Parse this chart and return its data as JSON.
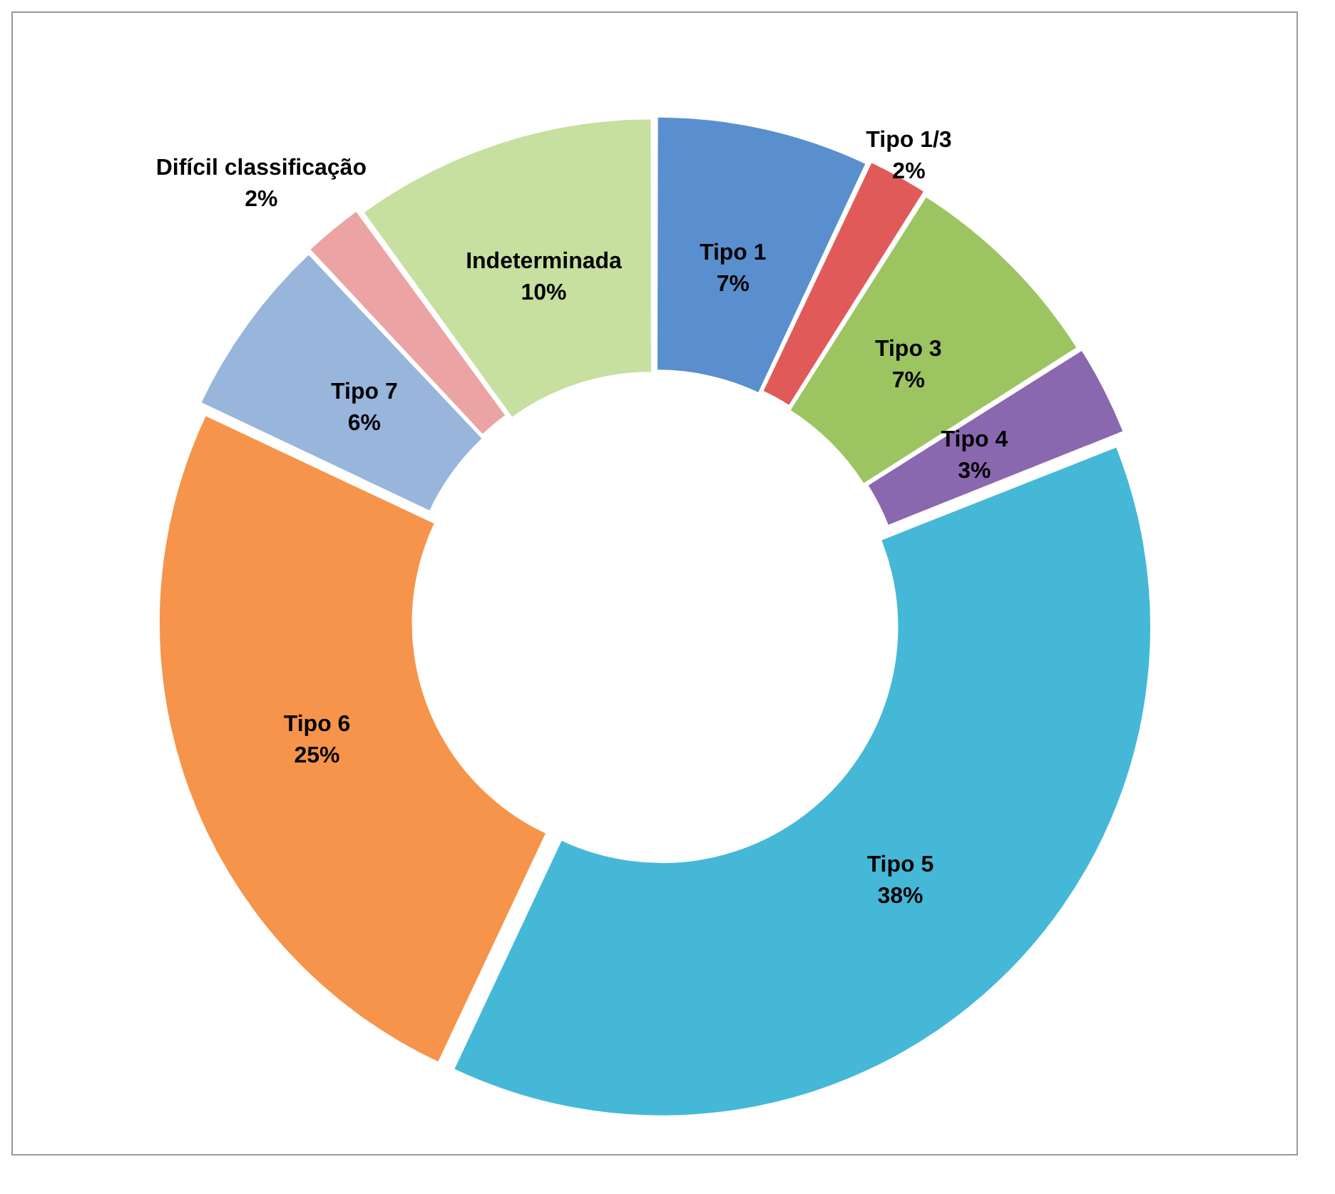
{
  "chart_data": {
    "type": "donut",
    "categories": [
      "Tipo 1",
      "Tipo 1/3",
      "Tipo 3",
      "Tipo 4",
      "Tipo 5",
      "Tipo 6",
      "Tipo 7",
      "Difícil classificação",
      "Indeterminada"
    ],
    "values": [
      7,
      2,
      7,
      3,
      38,
      25,
      6,
      2,
      10
    ],
    "colors": [
      "#5a8fcf",
      "#e05a5a",
      "#9cc460",
      "#8a68b0",
      "#45b8d8",
      "#f5944a",
      "#98b5dc",
      "#eca3a3",
      "#c7df9f"
    ],
    "value_labels": [
      "7%",
      "2%",
      "7%",
      "3%",
      "38%",
      "25%",
      "6%",
      "2%",
      "10%"
    ],
    "legend": false
  }
}
